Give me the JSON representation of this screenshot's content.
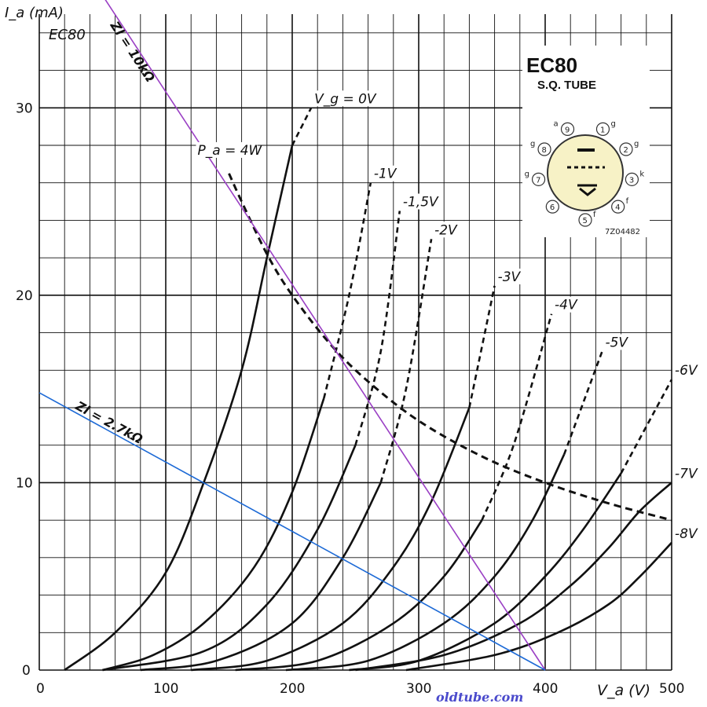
{
  "chart_data": {
    "type": "line",
    "title": "EC80",
    "xlabel": "V_a (V)",
    "ylabel": "I_a (mA)",
    "xlim": [
      0,
      500
    ],
    "ylim": [
      0,
      35
    ],
    "xticks": [
      0,
      100,
      200,
      300,
      400,
      500
    ],
    "yticks": [
      0,
      10,
      20,
      30
    ],
    "grid": true,
    "series": [
      {
        "name": "Vg = 0V",
        "label_text": "V_g = 0V",
        "x": [
          20,
          60,
          100,
          130,
          160,
          180,
          200,
          215
        ],
        "y": [
          0,
          2.0,
          5.2,
          10.0,
          16.0,
          22.0,
          28.0,
          30.0
        ]
      },
      {
        "name": "-1V",
        "label_text": "-1V",
        "x": [
          50,
          90,
          130,
          170,
          200,
          225,
          245,
          262
        ],
        "y": [
          0,
          0.8,
          2.5,
          5.5,
          9.5,
          14.5,
          20.0,
          26.0
        ]
      },
      {
        "name": "-1.5V",
        "label_text": "-1,5V",
        "x": [
          50,
          130,
          180,
          220,
          250,
          270,
          285
        ],
        "y": [
          0,
          1.0,
          3.5,
          7.5,
          12.0,
          17.0,
          24.5
        ]
      },
      {
        "name": "-2V",
        "label_text": "-2V",
        "x": [
          80,
          140,
          200,
          240,
          270,
          290,
          310
        ],
        "y": [
          0,
          0.5,
          2.5,
          6.0,
          10.0,
          15.0,
          23.0
        ]
      },
      {
        "name": "-3V",
        "label_text": "-3V",
        "x": [
          120,
          180,
          240,
          280,
          310,
          340,
          360
        ],
        "y": [
          0,
          0.5,
          2.5,
          5.5,
          9.0,
          14.0,
          20.5
        ]
      },
      {
        "name": "-4V",
        "label_text": "-4V",
        "x": [
          155,
          220,
          280,
          320,
          350,
          375,
          405
        ],
        "y": [
          0,
          0.5,
          2.5,
          5.0,
          8.0,
          12.0,
          19.0
        ]
      },
      {
        "name": "-5V",
        "label_text": "-5V",
        "x": [
          195,
          260,
          320,
          360,
          390,
          415,
          445
        ],
        "y": [
          0,
          0.5,
          2.5,
          5.0,
          8.0,
          11.5,
          17.0
        ]
      },
      {
        "name": "-6V",
        "label_text": "-6V",
        "x": [
          245,
          300,
          360,
          400,
          430,
          460,
          500
        ],
        "y": [
          0,
          0.5,
          2.5,
          5.0,
          7.5,
          10.5,
          15.5
        ]
      },
      {
        "name": "-7V",
        "label_text": "-7V",
        "x": [
          250,
          320,
          380,
          420,
          450,
          475,
          500
        ],
        "y": [
          0,
          0.8,
          2.5,
          4.5,
          6.5,
          8.5,
          10.0
        ]
      },
      {
        "name": "-8V",
        "label_text": "-8V",
        "x": [
          290,
          360,
          410,
          450,
          475,
          500
        ],
        "y": [
          0,
          0.8,
          2.0,
          3.5,
          5.0,
          6.8
        ]
      },
      {
        "name": "Pa = 4W",
        "label_text": "P_a = 4W",
        "x": [
          150,
          160,
          180,
          200,
          230,
          260,
          300,
          350,
          400,
          450,
          500
        ],
        "y": [
          26.5,
          25.0,
          22.2,
          20.0,
          17.4,
          15.4,
          13.3,
          11.4,
          10.0,
          8.9,
          8.0
        ]
      },
      {
        "name": "Zl = 10kΩ",
        "label_text": "Zl = 10kΩ",
        "x": [
          50,
          400
        ],
        "y": [
          36,
          0
        ]
      },
      {
        "name": "Zl = 2.7kΩ",
        "label_text": "Zl = 2.7kΩ",
        "x": [
          0,
          400
        ],
        "y": [
          14.8,
          0
        ]
      }
    ],
    "dashed_from": {
      "Vg = 0V": 200,
      "-1V": 215,
      "-1.5V": 250,
      "-2V": 270,
      "-3V": 315,
      "-4V": 350,
      "-5V": 400,
      "-6V": 440
    }
  },
  "header_label": "EC80",
  "tube_box": {
    "title": "EC80",
    "subtitle": "S.Q. TUBE",
    "code": "7Z04482",
    "pins": [
      {
        "n": "9",
        "sig": "a"
      },
      {
        "n": "1",
        "sig": "g"
      },
      {
        "n": "2",
        "sig": "g"
      },
      {
        "n": "3",
        "sig": "k"
      },
      {
        "n": "4",
        "sig": "f"
      },
      {
        "n": "5",
        "sig": "f"
      },
      {
        "n": "6",
        "sig": ""
      },
      {
        "n": "7",
        "sig": "g"
      },
      {
        "n": "8",
        "sig": "g"
      }
    ]
  },
  "footer": "oldtube.com",
  "colors": {
    "zl10k": "#9a3fc4",
    "zl27k": "#1d6ad6",
    "grid": "#111111",
    "footer": "#4a4acc"
  }
}
